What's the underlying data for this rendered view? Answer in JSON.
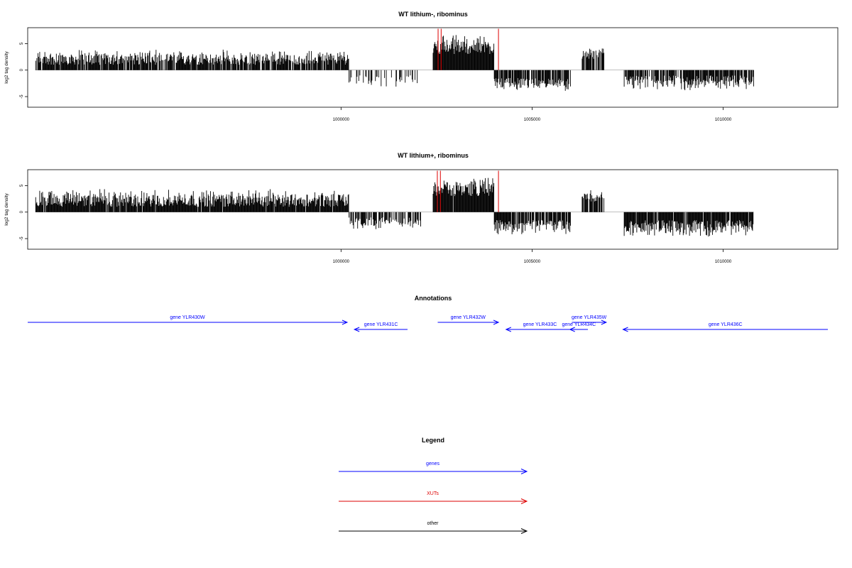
{
  "chart_data": [
    {
      "type": "bar",
      "title": "WT lithium-, ribominus",
      "ylabel": "log2 tag density",
      "xlim": [
        991800,
        1013000
      ],
      "ylim": [
        -7,
        8
      ],
      "yticks": [
        -5,
        0,
        5
      ],
      "xticks": [
        1000000,
        1005000,
        1010000
      ],
      "grid": false,
      "tracks": [
        {
          "from": 992000,
          "to": 1000200,
          "sign": 1,
          "lo": 1.0,
          "hi": 4.0,
          "density": 0.85
        },
        {
          "from": 1000200,
          "to": 1002100,
          "sign": -1,
          "lo": 1.0,
          "hi": 3.5,
          "density": 0.25
        },
        {
          "from": 1002400,
          "to": 1004000,
          "sign": 1,
          "lo": 3.0,
          "hi": 7.0,
          "density": 0.98
        },
        {
          "from": 1004000,
          "to": 1006000,
          "sign": -1,
          "lo": 1.5,
          "hi": 4.0,
          "density": 0.85
        },
        {
          "from": 1006300,
          "to": 1006900,
          "sign": 1,
          "lo": 2.0,
          "hi": 4.5,
          "density": 0.85
        },
        {
          "from": 1007400,
          "to": 1010800,
          "sign": -1,
          "lo": 1.0,
          "hi": 4.0,
          "density": 0.8
        }
      ],
      "red_marks": [
        {
          "x": 1002540,
          "value": 7.8
        },
        {
          "x": 1002620,
          "value": 7.8
        },
        {
          "x": 1004120,
          "value": 7.8
        }
      ]
    },
    {
      "type": "bar",
      "title": "WT lithium+, ribominus",
      "ylabel": "log2 tag density",
      "xlim": [
        991800,
        1013000
      ],
      "ylim": [
        -7,
        8
      ],
      "yticks": [
        -5,
        0,
        5
      ],
      "xticks": [
        1000000,
        1005000,
        1010000
      ],
      "grid": false,
      "tracks": [
        {
          "from": 992000,
          "to": 1000200,
          "sign": 1,
          "lo": 1.0,
          "hi": 4.5,
          "density": 0.95
        },
        {
          "from": 1000200,
          "to": 1002100,
          "sign": -1,
          "lo": 1.0,
          "hi": 3.5,
          "density": 0.7
        },
        {
          "from": 1002400,
          "to": 1004000,
          "sign": 1,
          "lo": 3.0,
          "hi": 7.0,
          "density": 0.98
        },
        {
          "from": 1004000,
          "to": 1006000,
          "sign": -1,
          "lo": 1.5,
          "hi": 4.5,
          "density": 0.9
        },
        {
          "from": 1006300,
          "to": 1006900,
          "sign": 1,
          "lo": 2.0,
          "hi": 4.5,
          "density": 0.85
        },
        {
          "from": 1007400,
          "to": 1010800,
          "sign": -1,
          "lo": 1.5,
          "hi": 5.0,
          "density": 0.95
        }
      ],
      "red_marks": [
        {
          "x": 1002520,
          "value": 7.8
        },
        {
          "x": 1002600,
          "value": 7.8
        },
        {
          "x": 1004120,
          "value": 7.8
        }
      ]
    }
  ],
  "annotations": {
    "title": "Annotations",
    "color": "#0000ff",
    "genes": [
      {
        "label": "gene YLR430W",
        "start": 991800,
        "end": 1000160,
        "strand": "+",
        "row": 0
      },
      {
        "label": "gene YLR431C",
        "start": 1000350,
        "end": 1001740,
        "strand": "-",
        "row": 1
      },
      {
        "label": "gene YLR432W",
        "start": 1002530,
        "end": 1004120,
        "strand": "+",
        "row": 0
      },
      {
        "label": "gene YLR433C",
        "start": 1004320,
        "end": 1006090,
        "strand": "-",
        "row": 1
      },
      {
        "label": "gene YLR434C",
        "start": 1005990,
        "end": 1006460,
        "strand": "-",
        "row": 1
      },
      {
        "label": "gene YLR435W",
        "start": 1006040,
        "end": 1006940,
        "strand": "+",
        "row": 0
      },
      {
        "label": "gene YLR436C",
        "start": 1007380,
        "end": 1013000,
        "strand": "-",
        "row": 1
      }
    ]
  },
  "legend": {
    "title": "Legend",
    "items": [
      {
        "label": "genes",
        "color": "#0000ff"
      },
      {
        "label": "XUTs",
        "color": "#dd0000"
      },
      {
        "label": "other",
        "color": "#000000"
      }
    ]
  }
}
